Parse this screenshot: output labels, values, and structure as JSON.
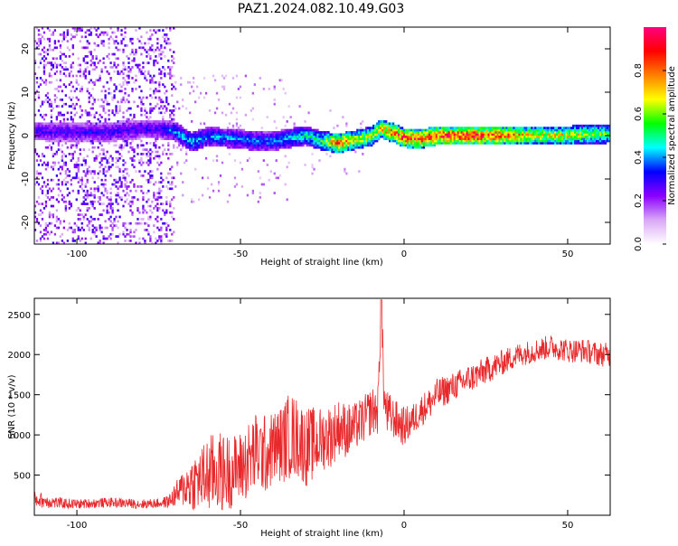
{
  "figure": {
    "title": "PAZ1.2024.082.10.49.G03"
  },
  "chart_data": [
    {
      "type": "heatmap",
      "xlabel": "Height of straight line (km)",
      "ylabel": "Frequency (Hz)",
      "colorbar_label": "Normalized spectral amplitude",
      "xlim": [
        -113,
        63
      ],
      "ylim": [
        -25,
        25
      ],
      "xticks": [
        -100,
        -50,
        0,
        50
      ],
      "yticks": [
        -20,
        -10,
        0,
        10,
        20
      ],
      "colorbar_range": [
        0.0,
        1.0
      ],
      "colorbar_ticks": [
        0.0,
        0.2,
        0.4,
        0.6,
        0.8
      ],
      "colorbar_colors": [
        "#ffffff",
        "#d9a8f5",
        "#8b00ff",
        "#0000ff",
        "#00ffff",
        "#00ff00",
        "#ffff00",
        "#ff8000",
        "#ff0000",
        "#ff0080"
      ],
      "ridge": {
        "x": [
          -113,
          -100,
          -90,
          -80,
          -75,
          -70,
          -65,
          -60,
          -55,
          -50,
          -45,
          -40,
          -35,
          -30,
          -25,
          -20,
          -15,
          -10,
          -7,
          -5,
          -2,
          0,
          5,
          10,
          20,
          30,
          40,
          50,
          63
        ],
        "y": [
          1.0,
          0.8,
          0.8,
          1.5,
          1.5,
          1.0,
          -1.5,
          -0.3,
          -0.5,
          -0.8,
          -1.3,
          -1.3,
          -0.6,
          0.0,
          -1.2,
          -1.8,
          -1.0,
          -0.2,
          1.6,
          1.0,
          0.3,
          -0.5,
          -0.8,
          0.0,
          0.0,
          0.0,
          0.0,
          0.0,
          0.5
        ],
        "amplitude": [
          0.3,
          0.3,
          0.3,
          0.3,
          0.3,
          0.4,
          0.45,
          0.4,
          0.4,
          0.4,
          0.4,
          0.4,
          0.45,
          0.5,
          0.55,
          0.85,
          0.7,
          0.65,
          0.75,
          0.8,
          0.85,
          0.9,
          0.9,
          0.9,
          0.95,
          0.85,
          0.7,
          0.7,
          0.6
        ]
      },
      "noise_region_x": [
        -113,
        -70
      ]
    },
    {
      "type": "line",
      "xlabel": "Height of straight line (km)",
      "ylabel": "SNR (10 * v/v)",
      "xlim": [
        -113,
        63
      ],
      "ylim": [
        0,
        2700
      ],
      "xticks": [
        -100,
        -50,
        0,
        50
      ],
      "yticks": [
        500,
        1000,
        1500,
        2000,
        2500
      ],
      "color": "#e8282a",
      "series": [
        {
          "x": [
            -113,
            -110,
            -105,
            -100,
            -95,
            -90,
            -85,
            -80,
            -75,
            -72,
            -70,
            -67,
            -65,
            -62,
            -60,
            -57,
            -55,
            -52,
            -50,
            -47,
            -45,
            -42,
            -40,
            -37,
            -35,
            -32,
            -30,
            -27,
            -25,
            -22,
            -20,
            -17,
            -15,
            -12,
            -10,
            -8,
            -7,
            -6,
            -5,
            -3,
            0,
            3,
            5,
            8,
            10,
            15,
            20,
            25,
            30,
            35,
            40,
            45,
            50,
            55,
            60,
            63
          ],
          "y": [
            200,
            180,
            150,
            140,
            150,
            160,
            150,
            140,
            150,
            170,
            250,
            350,
            400,
            450,
            500,
            550,
            520,
            560,
            600,
            700,
            800,
            750,
            850,
            900,
            1000,
            950,
            850,
            900,
            950,
            1000,
            1100,
            1050,
            1100,
            1200,
            1300,
            1300,
            2600,
            1400,
            1250,
            1200,
            1100,
            1200,
            1300,
            1400,
            1500,
            1600,
            1700,
            1800,
            1900,
            2000,
            2050,
            2100,
            2050,
            2050,
            2000,
            2000
          ],
          "noise_amplitude": [
            100,
            90,
            70,
            60,
            60,
            60,
            60,
            60,
            60,
            80,
            150,
            250,
            350,
            400,
            500,
            500,
            500,
            450,
            450,
            500,
            500,
            500,
            450,
            500,
            550,
            500,
            500,
            450,
            400,
            400,
            350,
            350,
            300,
            300,
            300,
            300,
            300,
            300,
            300,
            250,
            250,
            200,
            200,
            200,
            200,
            180,
            180,
            170,
            160,
            150,
            150,
            150,
            150,
            150,
            150,
            150
          ]
        }
      ]
    }
  ]
}
